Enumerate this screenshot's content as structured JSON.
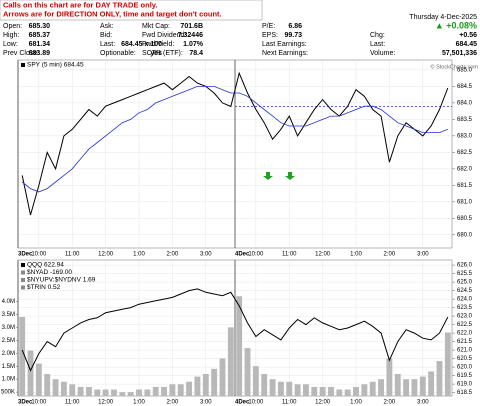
{
  "header": {
    "note": [
      "Calls on this chart are for DAY TRADE only.",
      "Arrows are for DIRECTION ONLY, time and target don't count."
    ],
    "fields": [
      {
        "label": "Open:",
        "value": "685.30"
      },
      {
        "label": "High:",
        "value": "685.37"
      },
      {
        "label": "Low:",
        "value": "681.34"
      },
      {
        "label": "Prev Close:",
        "value": "683.89"
      },
      {
        "label": "Ask:"
      },
      {
        "label": "Bid:"
      },
      {
        "label": "Last:",
        "value": "684.45 x 100"
      },
      {
        "label": "Optionable:",
        "value": "yes"
      },
      {
        "label": "Mkt Cap:",
        "value": "701.6B"
      },
      {
        "label": "Fwd Dividend:",
        "value": "7.32446"
      },
      {
        "label": "Fwd Yield:",
        "value": "1.07%"
      },
      {
        "label": "SCTR (ETF):",
        "value": "78.4"
      },
      {
        "label": "P/E:",
        "value": "6.86"
      },
      {
        "label": "EPS:",
        "value": "99.73"
      },
      {
        "label": "Last Earnings:"
      },
      {
        "label": "Next Earnings:"
      }
    ],
    "date": "Thursday 4-Dec-2025",
    "change_pct": "▲ +0.08%",
    "right": [
      {
        "label": "Chg:",
        "value": "+0.56"
      },
      {
        "label": "Last:",
        "value": "684.45"
      },
      {
        "label": "Volume:",
        "value": "57,501,336"
      }
    ],
    "watermark": "© StockCharts.com"
  },
  "chart_data": [
    {
      "type": "line",
      "categories": [
        "3Dec",
        null,
        "10:00",
        null,
        null,
        null,
        "11:00",
        null,
        null,
        null,
        "12:00",
        null,
        null,
        null,
        "1:00",
        null,
        null,
        null,
        "2:00",
        null,
        null,
        null,
        "3:00",
        null,
        null,
        null,
        "4Dec",
        null,
        "10:00",
        null,
        null,
        null,
        "11:00",
        null,
        null,
        null,
        "12:00",
        null,
        null,
        null,
        "1:00",
        null,
        null,
        null,
        "2:00",
        null,
        null,
        null,
        "3:00",
        null,
        null,
        null
      ],
      "series": [
        {
          "name": "SPY (5 min) 684.45",
          "color": "#000000",
          "values": [
            681.8,
            680.6,
            681.5,
            682.5,
            682.0,
            683.0,
            683.2,
            683.5,
            683.8,
            683.6,
            683.9,
            684.0,
            684.1,
            684.2,
            684.3,
            684.4,
            684.5,
            684.6,
            684.4,
            684.6,
            684.8,
            684.6,
            684.5,
            684.3,
            684.0,
            683.89,
            684.9,
            684.3,
            683.8,
            683.4,
            682.9,
            683.2,
            683.6,
            683.0,
            683.4,
            683.8,
            684.1,
            683.8,
            683.6,
            683.9,
            684.4,
            684.2,
            683.8,
            683.6,
            682.2,
            683.0,
            683.4,
            683.2,
            683.0,
            683.3,
            683.8,
            684.45
          ]
        },
        {
          "color": "#2233cc",
          "values": [
            681.6,
            681.4,
            681.3,
            681.4,
            681.6,
            681.8,
            682.0,
            682.3,
            682.6,
            682.8,
            683.0,
            683.2,
            683.4,
            683.5,
            683.7,
            683.8,
            684.0,
            684.1,
            684.2,
            684.3,
            684.4,
            684.5,
            684.5,
            684.5,
            684.4,
            684.3,
            684.3,
            684.2,
            684.0,
            683.8,
            683.6,
            683.4,
            683.3,
            683.3,
            683.3,
            683.4,
            683.5,
            683.6,
            683.6,
            683.7,
            683.8,
            683.9,
            683.9,
            683.8,
            683.6,
            683.4,
            683.3,
            683.2,
            683.1,
            683.1,
            683.1,
            683.2
          ]
        }
      ],
      "reference_line": 683.89,
      "y2lim": [
        679.6,
        685.3
      ],
      "y2ticks": [
        {
          "value": 680,
          "label": "680.0"
        },
        {
          "value": 680.5,
          "label": "680.5"
        },
        {
          "value": 681,
          "label": "681.0"
        },
        {
          "value": 681.5,
          "label": "681.5"
        },
        {
          "value": 682,
          "label": "682.0"
        },
        {
          "value": 682.5,
          "label": "682.5"
        },
        {
          "value": 683,
          "label": "683.0"
        },
        {
          "value": 683.5,
          "label": "683.5"
        },
        {
          "value": 684,
          "label": "684.0"
        },
        {
          "value": 684.5,
          "label": "684.5"
        },
        {
          "value": 685,
          "label": "685.0"
        }
      ],
      "grid": true
    },
    {
      "type": "line",
      "categories": [
        "3Dec",
        null,
        "10:00",
        null,
        null,
        null,
        "11:00",
        null,
        null,
        null,
        "12:00",
        null,
        null,
        null,
        "1:00",
        null,
        null,
        null,
        "2:00",
        null,
        null,
        null,
        "3:00",
        null,
        null,
        null,
        "4Dec",
        null,
        "10:00",
        null,
        null,
        null,
        "11:00",
        null,
        null,
        null,
        "12:00",
        null,
        null,
        null,
        "1:00",
        null,
        null,
        null,
        "2:00",
        null,
        null,
        null,
        "3:00",
        null,
        null,
        null
      ],
      "series": [
        {
          "type": "bar",
          "color": "#b8b8b8",
          "values": [
            3400000,
            2100000,
            1600000,
            1200000,
            1000000,
            900000,
            800000,
            700000,
            700000,
            600000,
            600000,
            600000,
            500000,
            500000,
            600000,
            600000,
            700000,
            700000,
            800000,
            800000,
            900000,
            1100000,
            1200000,
            1400000,
            1800000,
            3000000,
            4200000,
            2200000,
            1500000,
            1200000,
            1000000,
            900000,
            900000,
            800000,
            800000,
            700000,
            700000,
            700000,
            600000,
            600000,
            700000,
            800000,
            900000,
            1000000,
            1800000,
            1200000,
            1000000,
            1000000,
            1100000,
            1300000,
            1700000,
            2800000
          ]
        },
        {
          "name": "QQQ 622.94",
          "color": "#000000",
          "axis": "y2",
          "values": [
            621.0,
            619.8,
            620.8,
            621.5,
            621.2,
            622.0,
            622.3,
            622.6,
            622.8,
            622.9,
            623.2,
            623.3,
            623.4,
            623.5,
            623.7,
            623.8,
            623.9,
            624.0,
            624.1,
            624.3,
            624.5,
            624.6,
            624.4,
            624.3,
            624.2,
            624.4,
            623.6,
            622.6,
            621.8,
            622.2,
            621.9,
            621.6,
            622.3,
            622.8,
            622.5,
            622.9,
            622.6,
            622.4,
            622.2,
            622.3,
            622.5,
            622.7,
            622.4,
            622.0,
            620.4,
            621.5,
            622.2,
            622.0,
            621.7,
            621.6,
            622.0,
            622.94
          ]
        }
      ],
      "legend_extra": [
        "$NYAD -169.00",
        "$NYUPV:$NYDNV 1.69",
        "$TRIN 0.52"
      ],
      "ylim": [
        350000,
        5600000
      ],
      "yticks": [
        {
          "value": 500000,
          "label": "500K"
        },
        {
          "value": 1000000,
          "label": "1.0M"
        },
        {
          "value": 1500000,
          "label": "1.5M"
        },
        {
          "value": 2000000,
          "label": "2.0M"
        },
        {
          "value": 2500000,
          "label": "2.5M"
        },
        {
          "value": 3000000,
          "label": "3.0M"
        },
        {
          "value": 3500000,
          "label": "3.5M"
        },
        {
          "value": 4000000,
          "label": "4.0M"
        }
      ],
      "y2lim": [
        618.3,
        626.3
      ],
      "y2ticks": [
        {
          "value": 618.5,
          "label": "618.5"
        },
        {
          "value": 619,
          "label": "619.0"
        },
        {
          "value": 619.5,
          "label": "619.5"
        },
        {
          "value": 620,
          "label": "620.0"
        },
        {
          "value": 620.5,
          "label": "620.5"
        },
        {
          "value": 621,
          "label": "621.0"
        },
        {
          "value": 621.5,
          "label": "621.5"
        },
        {
          "value": 622,
          "label": "622.0"
        },
        {
          "value": 622.5,
          "label": "622.5"
        },
        {
          "value": 623,
          "label": "623.0"
        },
        {
          "value": 623.5,
          "label": "623.5"
        },
        {
          "value": 624,
          "label": "624.0"
        },
        {
          "value": 624.5,
          "label": "624.5"
        },
        {
          "value": 625,
          "label": "625.0"
        },
        {
          "value": 625.5,
          "label": "625.5"
        },
        {
          "value": 626,
          "label": "626.0"
        }
      ],
      "grid": true
    }
  ]
}
